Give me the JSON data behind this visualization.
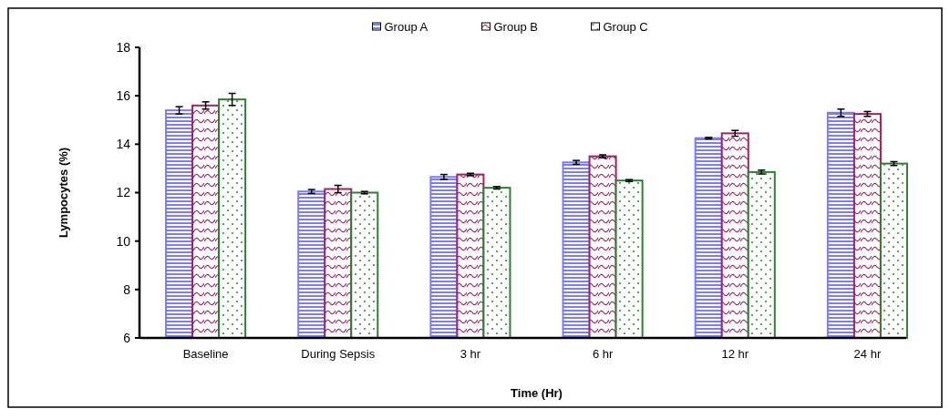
{
  "chart_data": {
    "type": "bar",
    "xlabel": "Time (Hr)",
    "ylabel": "Lympocytes (%)",
    "categories": [
      "Baseline",
      "During Sepsis",
      "3 hr",
      "6 hr",
      "12 hr",
      "24 hr"
    ],
    "series": [
      {
        "name": "Group A",
        "color": "#7b7bff",
        "values": [
          15.4,
          12.05,
          12.65,
          13.25,
          14.25,
          15.3
        ],
        "errors": [
          0.15,
          0.08,
          0.1,
          0.08,
          0.03,
          0.15
        ]
      },
      {
        "name": "Group B",
        "color": "#a0245a",
        "values": [
          15.6,
          12.15,
          12.75,
          13.5,
          14.45,
          15.25
        ],
        "errors": [
          0.15,
          0.15,
          0.05,
          0.06,
          0.12,
          0.1
        ]
      },
      {
        "name": "Group C",
        "color": "#2e7d32",
        "values": [
          15.85,
          12.0,
          12.2,
          12.5,
          12.85,
          13.2
        ],
        "errors": [
          0.25,
          0.05,
          0.05,
          0.04,
          0.08,
          0.08
        ]
      }
    ],
    "ylim": [
      6,
      18
    ],
    "yticks": [
      6,
      8,
      10,
      12,
      14,
      16,
      18
    ],
    "grid": false,
    "legend": "top"
  }
}
